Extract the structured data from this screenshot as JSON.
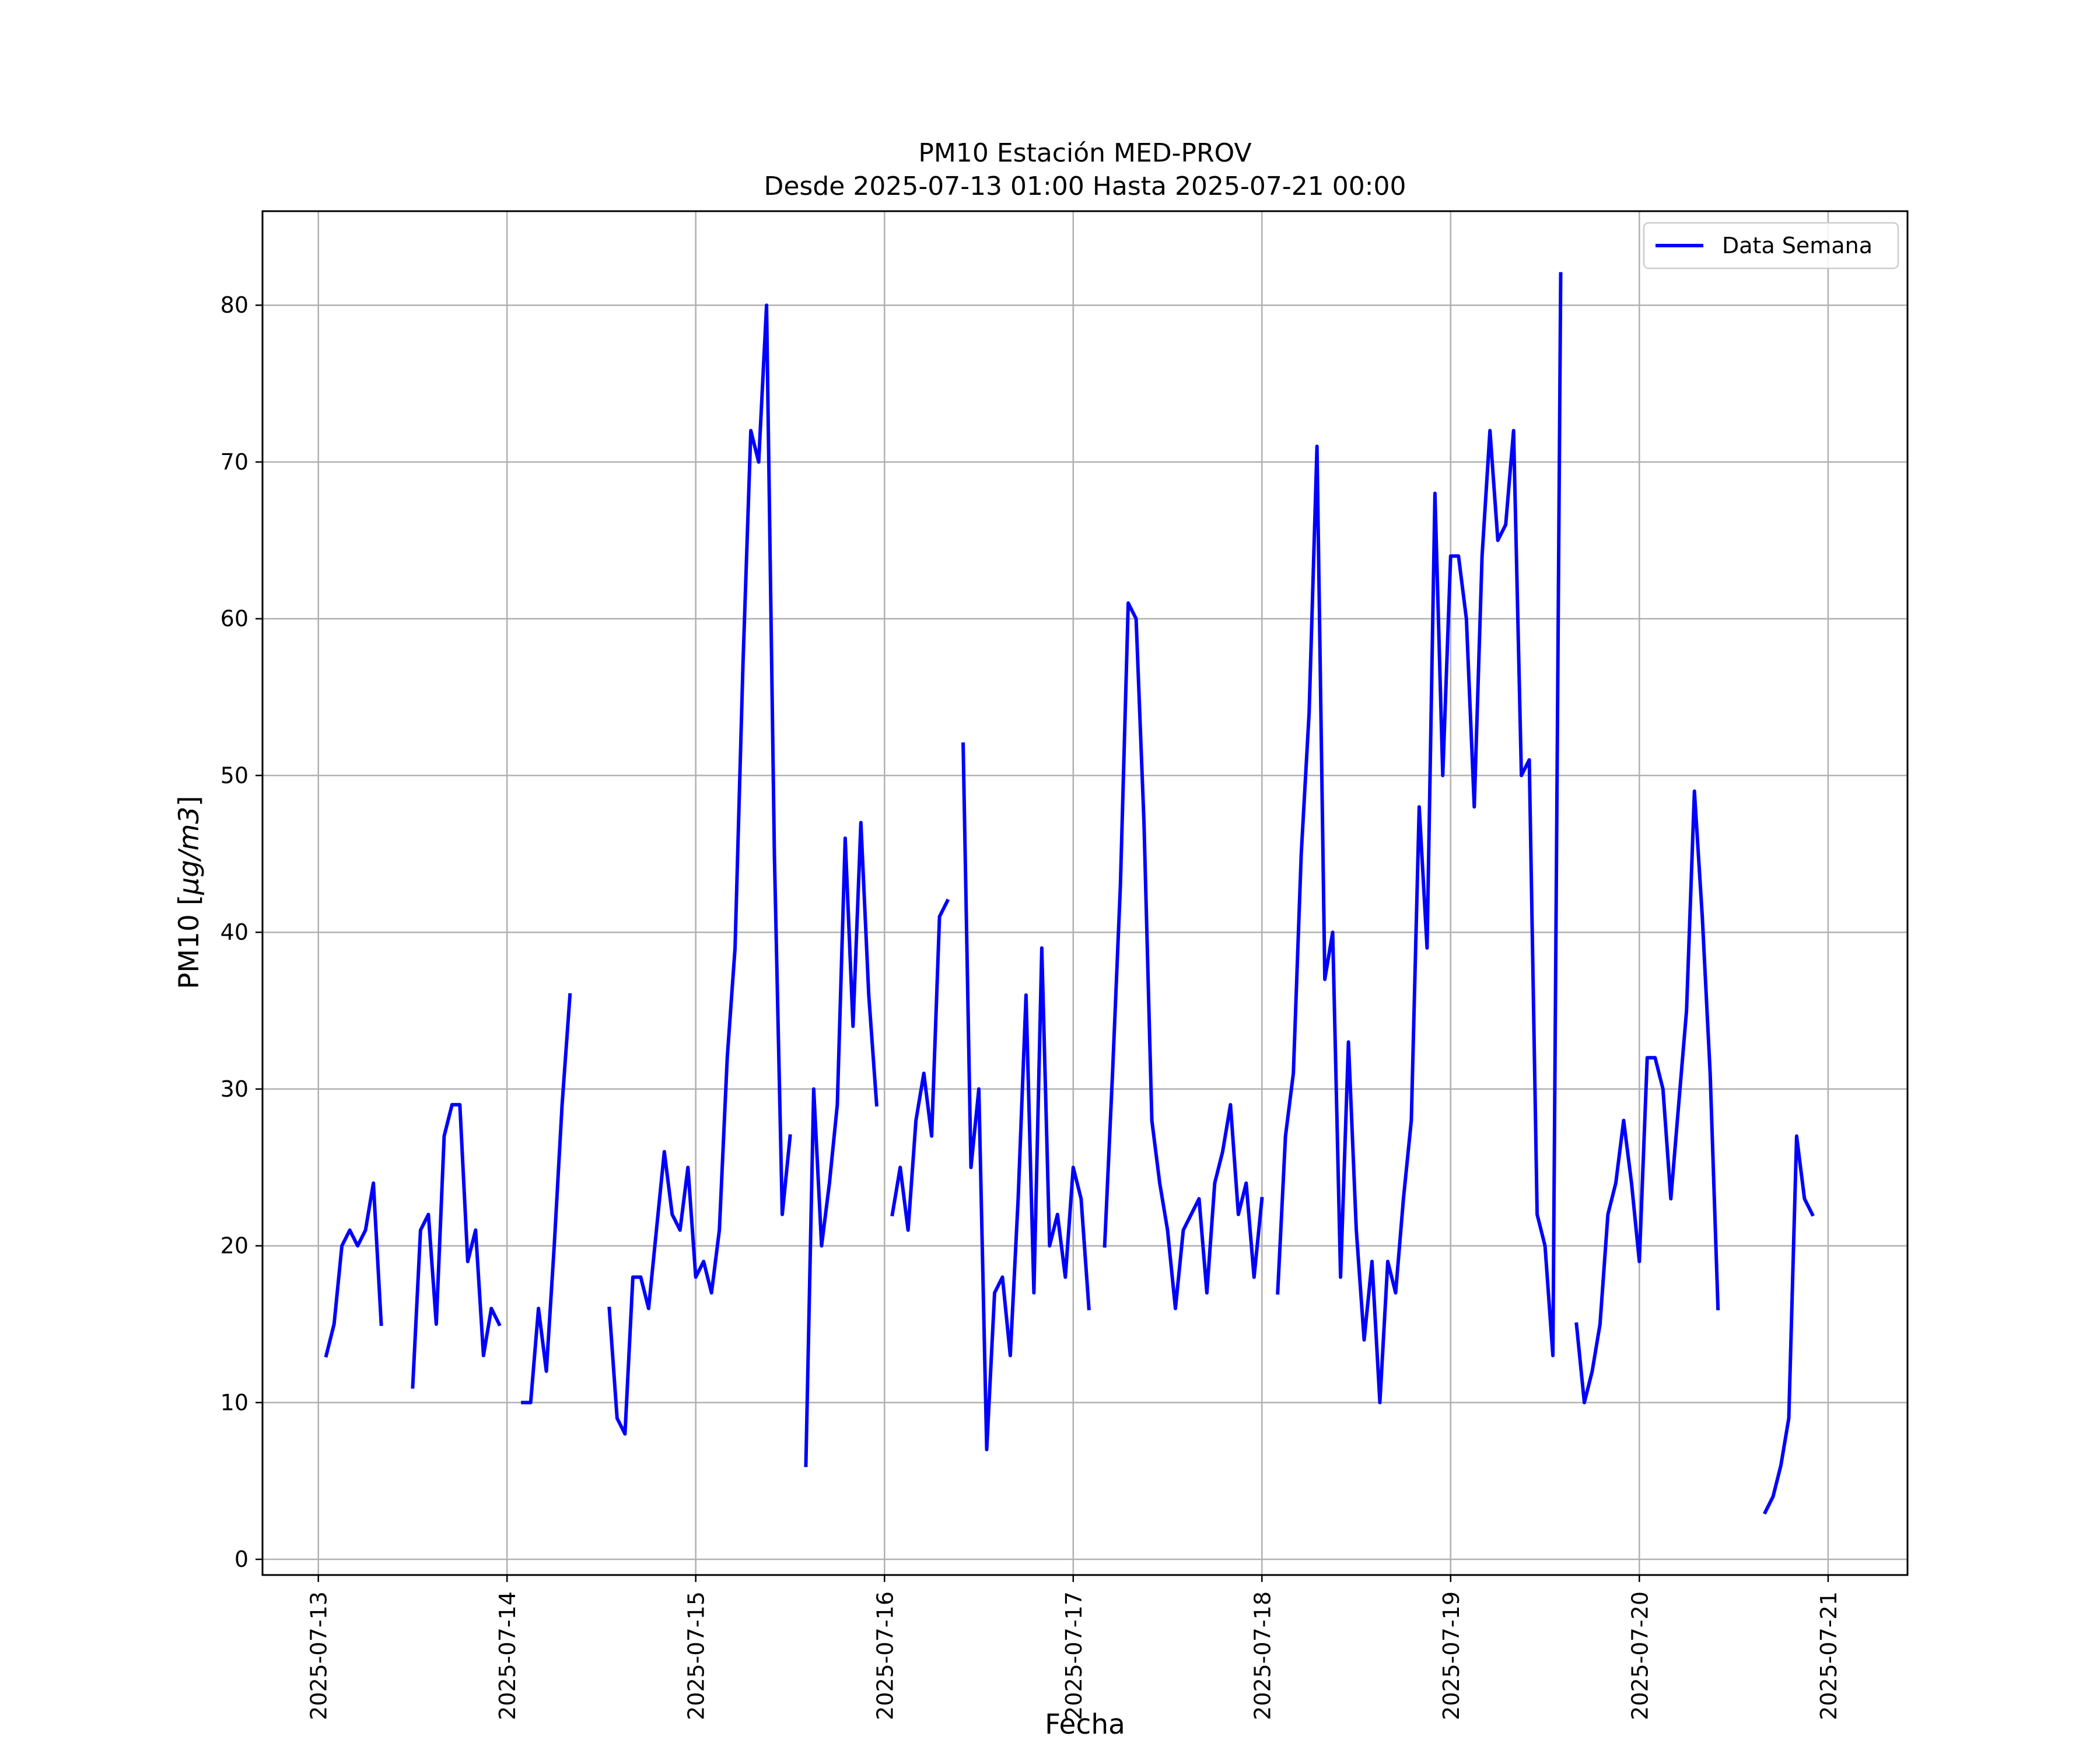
{
  "chart_data": {
    "type": "line",
    "title": "PM10 Estación MED-PROV",
    "subtitle": "Desde 2025-07-13 01:00 Hasta 2025-07-21 00:00",
    "xlabel": "Fecha",
    "ylabel_text": "PM10 [",
    "ylabel_unit": "μg/m3",
    "ylabel_close": "]",
    "x_ticks": [
      "2025-07-13",
      "2025-07-14",
      "2025-07-15",
      "2025-07-16",
      "2025-07-17",
      "2025-07-18",
      "2025-07-19",
      "2025-07-20",
      "2025-07-21"
    ],
    "y_ticks": [
      0,
      10,
      20,
      30,
      40,
      50,
      60,
      70,
      80
    ],
    "xlim": [
      "2025-07-12 16:54",
      "2025-07-21 10:06"
    ],
    "ylim": [
      -1,
      86
    ],
    "grid": true,
    "legend_position": "upper right",
    "series": [
      {
        "name": "Data Semana",
        "color": "#0000ff",
        "segments": [
          [
            [
              "2025-07-13 01:00",
              13
            ],
            [
              "2025-07-13 02:00",
              15
            ],
            [
              "2025-07-13 03:00",
              20
            ],
            [
              "2025-07-13 04:00",
              21
            ],
            [
              "2025-07-13 05:00",
              20
            ],
            [
              "2025-07-13 06:00",
              21
            ],
            [
              "2025-07-13 07:00",
              24
            ],
            [
              "2025-07-13 08:00",
              15
            ]
          ],
          [
            [
              "2025-07-13 12:00",
              11
            ],
            [
              "2025-07-13 13:00",
              21
            ],
            [
              "2025-07-13 14:00",
              22
            ],
            [
              "2025-07-13 15:00",
              15
            ],
            [
              "2025-07-13 16:00",
              27
            ],
            [
              "2025-07-13 17:00",
              29
            ],
            [
              "2025-07-13 18:00",
              29
            ],
            [
              "2025-07-13 19:00",
              19
            ],
            [
              "2025-07-13 20:00",
              21
            ],
            [
              "2025-07-13 21:00",
              13
            ],
            [
              "2025-07-13 22:00",
              16
            ],
            [
              "2025-07-13 23:00",
              15
            ]
          ],
          [
            [
              "2025-07-14 02:00",
              10
            ],
            [
              "2025-07-14 03:00",
              10
            ],
            [
              "2025-07-14 04:00",
              16
            ],
            [
              "2025-07-14 05:00",
              12
            ],
            [
              "2025-07-14 06:00",
              20
            ],
            [
              "2025-07-14 07:00",
              29
            ],
            [
              "2025-07-14 08:00",
              36
            ]
          ],
          [
            [
              "2025-07-14 13:00",
              16
            ],
            [
              "2025-07-14 14:00",
              9
            ],
            [
              "2025-07-14 15:00",
              8
            ],
            [
              "2025-07-14 16:00",
              18
            ],
            [
              "2025-07-14 17:00",
              18
            ],
            [
              "2025-07-14 18:00",
              16
            ],
            [
              "2025-07-14 19:00",
              21
            ],
            [
              "2025-07-14 20:00",
              26
            ],
            [
              "2025-07-14 21:00",
              22
            ],
            [
              "2025-07-14 22:00",
              21
            ],
            [
              "2025-07-14 23:00",
              25
            ],
            [
              "2025-07-15 00:00",
              18
            ],
            [
              "2025-07-15 01:00",
              19
            ],
            [
              "2025-07-15 02:00",
              17
            ],
            [
              "2025-07-15 03:00",
              21
            ],
            [
              "2025-07-15 04:00",
              32
            ],
            [
              "2025-07-15 05:00",
              39
            ],
            [
              "2025-07-15 06:00",
              57
            ],
            [
              "2025-07-15 07:00",
              72
            ],
            [
              "2025-07-15 08:00",
              70
            ],
            [
              "2025-07-15 09:00",
              80
            ],
            [
              "2025-07-15 10:00",
              45
            ],
            [
              "2025-07-15 11:00",
              22
            ],
            [
              "2025-07-15 12:00",
              27
            ]
          ],
          [
            [
              "2025-07-15 14:00",
              6
            ],
            [
              "2025-07-15 15:00",
              30
            ],
            [
              "2025-07-15 16:00",
              20
            ],
            [
              "2025-07-15 17:00",
              24
            ],
            [
              "2025-07-15 18:00",
              29
            ],
            [
              "2025-07-15 19:00",
              46
            ],
            [
              "2025-07-15 20:00",
              34
            ],
            [
              "2025-07-15 21:00",
              47
            ],
            [
              "2025-07-15 22:00",
              36
            ],
            [
              "2025-07-15 23:00",
              29
            ]
          ],
          [
            [
              "2025-07-16 01:00",
              22
            ],
            [
              "2025-07-16 02:00",
              25
            ],
            [
              "2025-07-16 03:00",
              21
            ],
            [
              "2025-07-16 04:00",
              28
            ],
            [
              "2025-07-16 05:00",
              31
            ],
            [
              "2025-07-16 06:00",
              27
            ],
            [
              "2025-07-16 07:00",
              41
            ],
            [
              "2025-07-16 08:00",
              42
            ]
          ],
          [
            [
              "2025-07-16 10:00",
              52
            ],
            [
              "2025-07-16 11:00",
              25
            ],
            [
              "2025-07-16 12:00",
              30
            ],
            [
              "2025-07-16 13:00",
              7
            ],
            [
              "2025-07-16 14:00",
              17
            ],
            [
              "2025-07-16 15:00",
              18
            ],
            [
              "2025-07-16 16:00",
              13
            ],
            [
              "2025-07-16 17:00",
              23
            ],
            [
              "2025-07-16 18:00",
              36
            ],
            [
              "2025-07-16 19:00",
              17
            ],
            [
              "2025-07-16 20:00",
              39
            ],
            [
              "2025-07-16 21:00",
              20
            ],
            [
              "2025-07-16 22:00",
              22
            ],
            [
              "2025-07-16 23:00",
              18
            ],
            [
              "2025-07-17 00:00",
              25
            ],
            [
              "2025-07-17 01:00",
              23
            ],
            [
              "2025-07-17 02:00",
              16
            ]
          ],
          [
            [
              "2025-07-17 04:00",
              20
            ],
            [
              "2025-07-17 05:00",
              31
            ],
            [
              "2025-07-17 06:00",
              43
            ],
            [
              "2025-07-17 07:00",
              61
            ],
            [
              "2025-07-17 08:00",
              60
            ],
            [
              "2025-07-17 09:00",
              47
            ],
            [
              "2025-07-17 10:00",
              28
            ],
            [
              "2025-07-17 11:00",
              24
            ],
            [
              "2025-07-17 12:00",
              21
            ],
            [
              "2025-07-17 13:00",
              16
            ],
            [
              "2025-07-17 14:00",
              21
            ],
            [
              "2025-07-17 15:00",
              22
            ],
            [
              "2025-07-17 16:00",
              23
            ],
            [
              "2025-07-17 17:00",
              17
            ],
            [
              "2025-07-17 18:00",
              24
            ],
            [
              "2025-07-17 19:00",
              26
            ],
            [
              "2025-07-17 20:00",
              29
            ],
            [
              "2025-07-17 21:00",
              22
            ],
            [
              "2025-07-17 22:00",
              24
            ],
            [
              "2025-07-17 23:00",
              18
            ],
            [
              "2025-07-18 00:00",
              23
            ]
          ],
          [
            [
              "2025-07-18 02:00",
              17
            ],
            [
              "2025-07-18 03:00",
              27
            ],
            [
              "2025-07-18 04:00",
              31
            ],
            [
              "2025-07-18 05:00",
              45
            ],
            [
              "2025-07-18 06:00",
              54
            ],
            [
              "2025-07-18 07:00",
              71
            ],
            [
              "2025-07-18 08:00",
              37
            ],
            [
              "2025-07-18 09:00",
              40
            ],
            [
              "2025-07-18 10:00",
              18
            ],
            [
              "2025-07-18 11:00",
              33
            ],
            [
              "2025-07-18 12:00",
              21
            ],
            [
              "2025-07-18 13:00",
              14
            ],
            [
              "2025-07-18 14:00",
              19
            ],
            [
              "2025-07-18 15:00",
              10
            ],
            [
              "2025-07-18 16:00",
              19
            ],
            [
              "2025-07-18 17:00",
              17
            ],
            [
              "2025-07-18 18:00",
              23
            ],
            [
              "2025-07-18 19:00",
              28
            ],
            [
              "2025-07-18 20:00",
              48
            ],
            [
              "2025-07-18 21:00",
              39
            ],
            [
              "2025-07-18 22:00",
              68
            ],
            [
              "2025-07-18 23:00",
              50
            ],
            [
              "2025-07-19 00:00",
              64
            ],
            [
              "2025-07-19 01:00",
              64
            ],
            [
              "2025-07-19 02:00",
              60
            ],
            [
              "2025-07-19 03:00",
              48
            ],
            [
              "2025-07-19 04:00",
              64
            ],
            [
              "2025-07-19 05:00",
              72
            ],
            [
              "2025-07-19 06:00",
              65
            ],
            [
              "2025-07-19 07:00",
              66
            ],
            [
              "2025-07-19 08:00",
              72
            ],
            [
              "2025-07-19 09:00",
              50
            ],
            [
              "2025-07-19 10:00",
              51
            ],
            [
              "2025-07-19 11:00",
              22
            ],
            [
              "2025-07-19 12:00",
              20
            ],
            [
              "2025-07-19 13:00",
              13
            ],
            [
              "2025-07-19 14:00",
              82
            ]
          ],
          [
            [
              "2025-07-19 16:00",
              15
            ],
            [
              "2025-07-19 17:00",
              10
            ],
            [
              "2025-07-19 18:00",
              12
            ],
            [
              "2025-07-19 19:00",
              15
            ],
            [
              "2025-07-19 20:00",
              22
            ],
            [
              "2025-07-19 21:00",
              24
            ],
            [
              "2025-07-19 22:00",
              28
            ],
            [
              "2025-07-19 23:00",
              24
            ],
            [
              "2025-07-20 00:00",
              19
            ],
            [
              "2025-07-20 01:00",
              32
            ],
            [
              "2025-07-20 02:00",
              32
            ],
            [
              "2025-07-20 03:00",
              30
            ],
            [
              "2025-07-20 04:00",
              23
            ],
            [
              "2025-07-20 05:00",
              29
            ],
            [
              "2025-07-20 06:00",
              35
            ],
            [
              "2025-07-20 07:00",
              49
            ],
            [
              "2025-07-20 08:00",
              41
            ],
            [
              "2025-07-20 09:00",
              31
            ],
            [
              "2025-07-20 10:00",
              16
            ]
          ],
          [
            [
              "2025-07-20 16:00",
              3
            ],
            [
              "2025-07-20 17:00",
              4
            ],
            [
              "2025-07-20 18:00",
              6
            ],
            [
              "2025-07-20 19:00",
              9
            ],
            [
              "2025-07-20 20:00",
              27
            ],
            [
              "2025-07-20 21:00",
              23
            ],
            [
              "2025-07-20 22:00",
              22
            ]
          ]
        ]
      }
    ]
  }
}
